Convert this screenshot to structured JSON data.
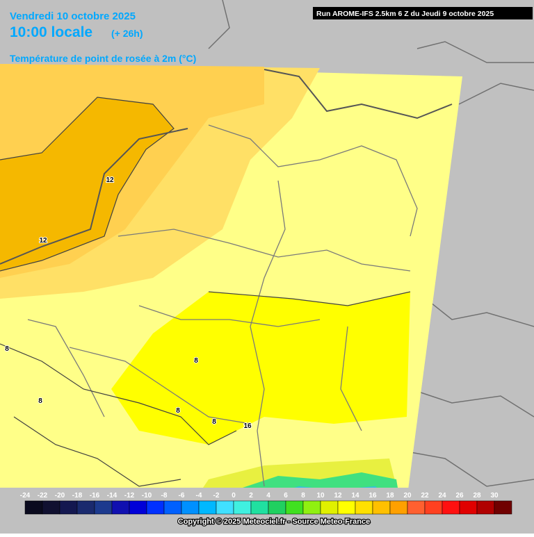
{
  "header": {
    "date": "Vendredi 10 octobre 2025",
    "time": "10:00 locale",
    "lead": "(+ 26h)",
    "field": "Température de point de rosée à 2m (°C)",
    "run": "Run AROME-IFS 2.5km 6 Z du Jeudi 9 octobre 2025"
  },
  "contour_labels": [
    "12",
    "12",
    "8",
    "8",
    "8",
    "8",
    "16",
    "8"
  ],
  "legend": {
    "labels": [
      -24,
      -22,
      -20,
      -18,
      -16,
      -14,
      -12,
      -10,
      -8,
      -6,
      -4,
      -2,
      0,
      2,
      4,
      6,
      8,
      10,
      12,
      14,
      16,
      18,
      20,
      22,
      24,
      26,
      28,
      30
    ],
    "colors": [
      "#0a0a1e",
      "#101030",
      "#141850",
      "#1a2a6e",
      "#1c3a8e",
      "#1010b0",
      "#0000d8",
      "#0030ff",
      "#0060ff",
      "#0090ff",
      "#00b8ff",
      "#40e0ff",
      "#40f0e0",
      "#20e0a0",
      "#20d060",
      "#40e020",
      "#90f010",
      "#e0f000",
      "#ffff00",
      "#ffe000",
      "#ffc000",
      "#ffa000",
      "#ff6030",
      "#ff4020",
      "#ff1010",
      "#e00000",
      "#b00000",
      "#700000"
    ]
  },
  "footer": "Copyright © 2025 Meteociel.fr - Source Meteo-France"
}
